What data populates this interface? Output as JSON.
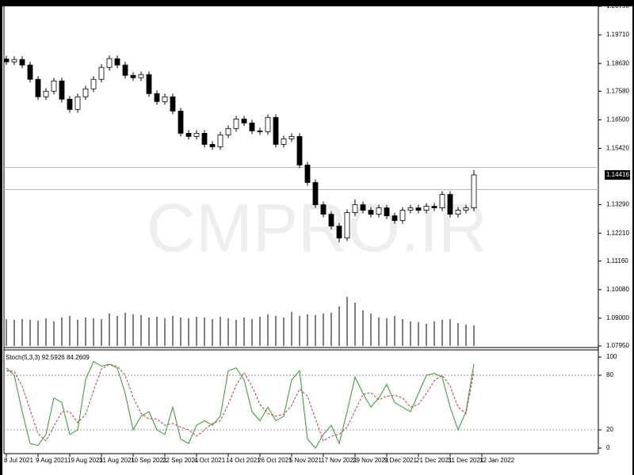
{
  "chart_data": [
    {
      "type": "candlestick",
      "watermark": "CMPRO.IR",
      "up_color": "#ffffff",
      "down_color": "#000000",
      "wick_color": "#000000",
      "volume_color": "#555555",
      "level_color": "#b8b8b8",
      "open": [
        1.188,
        1.1869,
        1.1878,
        1.1857,
        1.1803,
        1.1737,
        1.1758,
        1.1797,
        1.1728,
        1.1689,
        1.1737,
        1.1767,
        1.1803,
        1.1848,
        1.1881,
        1.1857,
        1.1818,
        1.1809,
        1.1821,
        1.1749,
        1.1719,
        1.1737,
        1.1683,
        1.1599,
        1.1587,
        1.1599,
        1.1557,
        1.1548,
        1.1593,
        1.1617,
        1.1653,
        1.1638,
        1.1608,
        1.1605,
        1.1659,
        1.1557,
        1.1578,
        1.1587,
        1.1479,
        1.1413,
        1.1329,
        1.1293,
        1.1248,
        1.1203,
        1.1299,
        1.1329,
        1.1308,
        1.1293,
        1.1317,
        1.1287,
        1.1269,
        1.1308,
        1.1317,
        1.1308,
        1.1323,
        1.1317,
        1.1368,
        1.1293,
        1.1308,
        1.1317
      ],
      "high": [
        1.1892,
        1.189,
        1.189,
        1.1869,
        1.1815,
        1.177,
        1.1809,
        1.1809,
        1.174,
        1.1749,
        1.1779,
        1.1815,
        1.186,
        1.1893,
        1.1893,
        1.1869,
        1.183,
        1.1833,
        1.1833,
        1.1761,
        1.1749,
        1.1749,
        1.1695,
        1.1611,
        1.1611,
        1.1611,
        1.1569,
        1.1605,
        1.1629,
        1.1665,
        1.1665,
        1.165,
        1.162,
        1.1671,
        1.1671,
        1.159,
        1.1599,
        1.1599,
        1.1491,
        1.1425,
        1.1341,
        1.1305,
        1.126,
        1.1311,
        1.135,
        1.1341,
        1.132,
        1.1329,
        1.1329,
        1.1299,
        1.132,
        1.1329,
        1.1329,
        1.1335,
        1.1335,
        1.138,
        1.138,
        1.132,
        1.1329,
        1.146
      ],
      "low": [
        1.1857,
        1.1857,
        1.1845,
        1.1791,
        1.1725,
        1.1725,
        1.1746,
        1.1716,
        1.1677,
        1.1677,
        1.1725,
        1.1755,
        1.1791,
        1.1836,
        1.1845,
        1.1806,
        1.1797,
        1.1797,
        1.1737,
        1.1707,
        1.1707,
        1.1671,
        1.1587,
        1.1575,
        1.1575,
        1.1545,
        1.1536,
        1.1536,
        1.1581,
        1.1605,
        1.1626,
        1.1596,
        1.1593,
        1.1593,
        1.1545,
        1.1545,
        1.1566,
        1.1467,
        1.1401,
        1.1317,
        1.1281,
        1.1236,
        1.1186,
        1.1191,
        1.1287,
        1.1296,
        1.1281,
        1.1281,
        1.1275,
        1.1257,
        1.1257,
        1.1296,
        1.1296,
        1.1296,
        1.1305,
        1.1305,
        1.1281,
        1.1281,
        1.1296,
        1.1305
      ],
      "close": [
        1.1869,
        1.1878,
        1.1857,
        1.1803,
        1.1737,
        1.1758,
        1.1797,
        1.1728,
        1.1689,
        1.1737,
        1.1767,
        1.1803,
        1.1848,
        1.1881,
        1.1857,
        1.1818,
        1.1809,
        1.1821,
        1.1749,
        1.1719,
        1.1737,
        1.1683,
        1.1599,
        1.1587,
        1.1599,
        1.1557,
        1.1548,
        1.1593,
        1.1617,
        1.1653,
        1.1638,
        1.1608,
        1.1605,
        1.1659,
        1.1557,
        1.1578,
        1.1587,
        1.1479,
        1.1413,
        1.1329,
        1.1293,
        1.1248,
        1.1203,
        1.1299,
        1.1329,
        1.1308,
        1.1293,
        1.1317,
        1.1287,
        1.1269,
        1.1308,
        1.1317,
        1.1308,
        1.1323,
        1.1317,
        1.1368,
        1.1293,
        1.1308,
        1.1317,
        1.14416
      ],
      "volume": [
        34,
        33,
        34,
        33,
        32,
        35,
        31,
        36,
        38,
        33,
        36,
        35,
        34,
        41,
        38,
        42,
        40,
        39,
        36,
        37,
        35,
        38,
        36,
        35,
        37,
        36,
        34,
        37,
        35,
        33,
        36,
        34,
        37,
        40,
        38,
        36,
        43,
        38,
        40,
        39,
        41,
        42,
        50,
        62,
        55,
        45,
        41,
        36,
        35,
        38,
        34,
        31,
        30,
        28,
        31,
        33,
        34,
        29,
        27,
        26
      ],
      "levels": [
        1.147,
        1.1386
      ],
      "xlim": [
        -0.3,
        74.7
      ],
      "xticks": [
        {
          "value": 0,
          "label": "8 Jul 2021"
        },
        {
          "value": 4,
          "label": "9 Aug 2021"
        },
        {
          "value": 8,
          "label": "19 Aug 2021"
        },
        {
          "value": 12,
          "label": "31 Aug 2021"
        },
        {
          "value": 16,
          "label": "10 Sep 2021"
        },
        {
          "value": 20,
          "label": "22 Sep 2021"
        },
        {
          "value": 24,
          "label": "4 Oct 2021"
        },
        {
          "value": 28,
          "label": "14 Oct 2021"
        },
        {
          "value": 32,
          "label": "26 Oct 2021"
        },
        {
          "value": 36,
          "label": "5 Nov 2021"
        },
        {
          "value": 40,
          "label": "17 Nov 2021"
        },
        {
          "value": 44,
          "label": "29 Nov 2021"
        },
        {
          "value": 48,
          "label": "9 Dec 2021"
        },
        {
          "value": 52,
          "label": "21 Dec 2021"
        },
        {
          "value": 56,
          "label": "31 Dec 2021"
        },
        {
          "value": 60,
          "label": "12 Jan 2022"
        }
      ],
      "ylim": [
        1.0795,
        1.2079
      ],
      "yticks": [
        {
          "value": 1.2079,
          "label": "1.20790"
        },
        {
          "value": 1.1971,
          "label": "1.19710"
        },
        {
          "value": 1.1863,
          "label": "1.18630"
        },
        {
          "value": 1.1758,
          "label": "1.17580"
        },
        {
          "value": 1.165,
          "label": "1.16500"
        },
        {
          "value": 1.1542,
          "label": "1.15420"
        },
        {
          "value": 1.1329,
          "label": "1.13290"
        },
        {
          "value": 1.1221,
          "label": "1.12210"
        },
        {
          "value": 1.1116,
          "label": "1.11160"
        },
        {
          "value": 1.1008,
          "label": "1.10080"
        },
        {
          "value": 1.09,
          "label": "1.09000"
        },
        {
          "value": 1.0795,
          "label": "1.07950"
        }
      ]
    },
    {
      "type": "line",
      "title": "Stoch(5,3,3) 92.5926 84.2609",
      "ylim": [
        0,
        100
      ],
      "yticks": [
        0,
        20,
        80,
        100
      ],
      "levels": [
        20,
        80
      ],
      "level_color": "#999999",
      "series": [
        {
          "color": "#2e9a2e",
          "dashed": false,
          "values": [
            88,
            80,
            40,
            5,
            3,
            15,
            55,
            50,
            15,
            20,
            75,
            95,
            90,
            92,
            88,
            60,
            20,
            35,
            40,
            20,
            15,
            45,
            10,
            5,
            25,
            30,
            25,
            35,
            85,
            88,
            75,
            40,
            30,
            45,
            30,
            35,
            75,
            85,
            10,
            0,
            15,
            25,
            5,
            40,
            78,
            60,
            45,
            55,
            70,
            50,
            45,
            40,
            60,
            80,
            82,
            78,
            45,
            20,
            40,
            92.5926
          ]
        },
        {
          "color": "#e03030",
          "dashed": true,
          "values": [
            85,
            84,
            68,
            42,
            16,
            8,
            24,
            40,
            40,
            28,
            37,
            63,
            87,
            92,
            90,
            80,
            56,
            38,
            32,
            32,
            25,
            27,
            23,
            20,
            13,
            20,
            27,
            30,
            48,
            69,
            83,
            68,
            48,
            38,
            35,
            37,
            47,
            65,
            57,
            32,
            8,
            13,
            15,
            23,
            41,
            59,
            61,
            53,
            57,
            58,
            55,
            45,
            48,
            60,
            74,
            80,
            68,
            45,
            38,
            84.2609
          ]
        }
      ]
    }
  ]
}
